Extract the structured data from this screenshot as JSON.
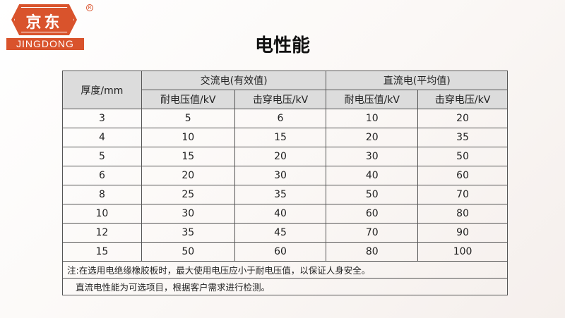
{
  "logo": {
    "cn": "京东",
    "en": "JINGDONG",
    "reg": "R"
  },
  "title": "电性能",
  "table": {
    "col_thickness": "厚度/mm",
    "group_ac": "交流电(有效值)",
    "group_dc": "直流电(平均值)",
    "sub": [
      "耐电压值/kV",
      "击穿电压/kV",
      "耐电压值/kV",
      "击穿电压/kV"
    ],
    "rows": [
      [
        "3",
        "5",
        "6",
        "10",
        "20"
      ],
      [
        "4",
        "10",
        "15",
        "20",
        "35"
      ],
      [
        "5",
        "15",
        "20",
        "30",
        "50"
      ],
      [
        "6",
        "20",
        "30",
        "40",
        "60"
      ],
      [
        "8",
        "25",
        "35",
        "50",
        "70"
      ],
      [
        "10",
        "30",
        "40",
        "60",
        "80"
      ],
      [
        "12",
        "35",
        "45",
        "70",
        "90"
      ],
      [
        "15",
        "50",
        "60",
        "80",
        "100"
      ]
    ],
    "notes": [
      "注:在选用电绝缘橡胶板时，最大使用电压应小于耐电压值，以保证人身安全。",
      "直流电性能为可选项目，根据客户需求进行检测。"
    ]
  }
}
